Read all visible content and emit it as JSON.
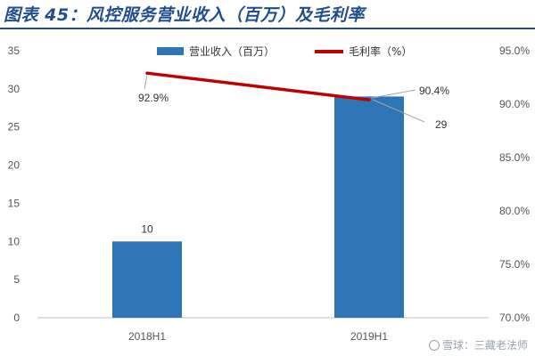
{
  "title": "图表 45：风控服务营业收入（百万）及毛利率",
  "watermark": "雪球：三藏老法师",
  "chart_data": {
    "type": "bar",
    "categories": [
      "2018H1",
      "2019H1"
    ],
    "series": [
      {
        "name": "营业收入（百万）",
        "type": "bar",
        "axis": "left",
        "color": "#2e75b6",
        "values": [
          10,
          29
        ],
        "data_labels": [
          "10",
          "29"
        ]
      },
      {
        "name": "毛利率（%）",
        "type": "line",
        "axis": "right",
        "color": "#c00000",
        "values": [
          92.9,
          90.4
        ],
        "data_labels": [
          "92.9%",
          "90.4%"
        ]
      }
    ],
    "y_left": {
      "ylim": [
        0,
        35
      ],
      "ticks": [
        "0",
        "5",
        "10",
        "15",
        "20",
        "25",
        "30",
        "35"
      ]
    },
    "y_right": {
      "ylim": [
        70,
        95
      ],
      "ticks": [
        "70.0%",
        "75.0%",
        "80.0%",
        "85.0%",
        "90.0%",
        "95.0%"
      ]
    },
    "legend_position": "top",
    "grid": false
  }
}
